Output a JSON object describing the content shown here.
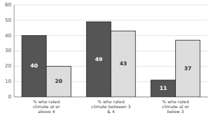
{
  "chart_data": {
    "type": "bar",
    "categories": [
      "% who rated\nclimate at or\nabove 4",
      "% who rated\nclimate between 3\n& 4",
      "% who rated\nclimate at or\nbelow 3"
    ],
    "series": [
      {
        "color": "#555555",
        "values": [
          40,
          49,
          11
        ]
      },
      {
        "color": "#dddddd",
        "values": [
          20,
          43,
          37
        ]
      }
    ],
    "ylim": [
      0,
      60
    ],
    "yticks": [
      0,
      10,
      20,
      30,
      40,
      50,
      60
    ],
    "grid": true,
    "data_labels": true
  }
}
